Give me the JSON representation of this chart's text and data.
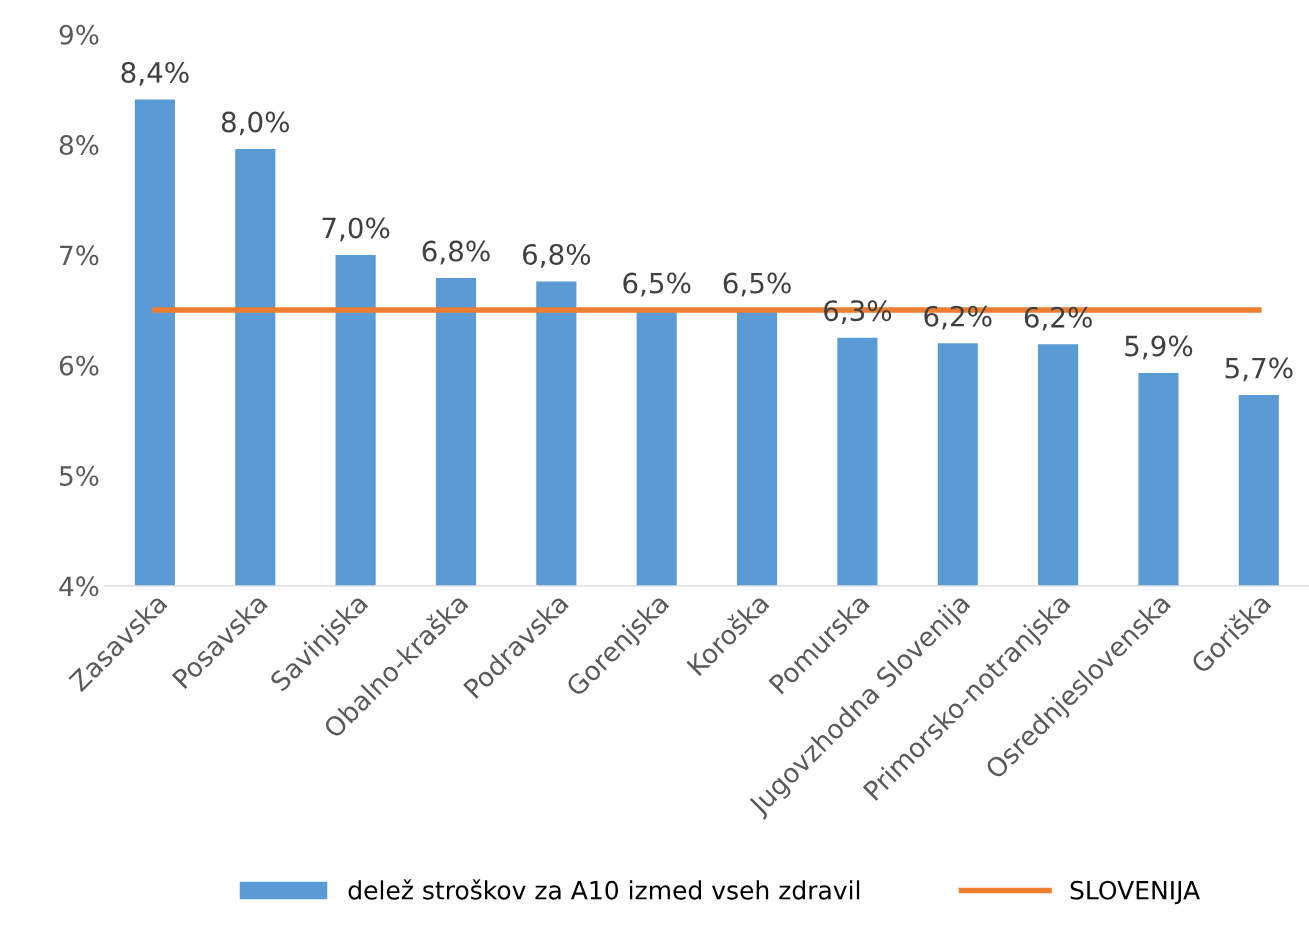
{
  "chart_data": {
    "type": "bar",
    "categories": [
      "Zasavska",
      "Posavska",
      "Savinjska",
      "Obalno-kraška",
      "Podravska",
      "Gorenjska",
      "Koroška",
      "Pomurska",
      "Jugovzhodna Slovenija",
      "Primorsko-notranjska",
      "Osrednjeslovenska",
      "Goriška"
    ],
    "series": [
      {
        "name": "delež stroškov za A10 izmed vseh zdravil",
        "color": "#5b9bd5",
        "values": [
          8.41,
          7.96,
          7.0,
          6.79,
          6.76,
          6.5,
          6.5,
          6.25,
          6.2,
          6.19,
          5.93,
          5.73
        ],
        "value_labels": [
          "8,4%",
          "8,0%",
          "7,0%",
          "6,8%",
          "6,8%",
          "6,5%",
          "6,5%",
          "6,3%",
          "6,2%",
          "6,2%",
          "5,9%",
          "5,7%"
        ]
      },
      {
        "name": "SLOVENIJA",
        "type": "line",
        "color": "#ed7d31",
        "values": [
          6.5,
          6.5,
          6.5,
          6.5,
          6.5,
          6.5,
          6.5,
          6.5,
          6.5,
          6.5,
          6.5,
          6.5
        ]
      }
    ],
    "ylim": [
      4,
      9
    ],
    "yticks": [
      {
        "value": 4,
        "label": "4%"
      },
      {
        "value": 5,
        "label": "5%"
      },
      {
        "value": 6,
        "label": "6%"
      },
      {
        "value": 7,
        "label": "7%"
      },
      {
        "value": 8,
        "label": "8%"
      },
      {
        "value": 9,
        "label": "9%"
      }
    ],
    "legend": "bottom",
    "grid": false
  }
}
